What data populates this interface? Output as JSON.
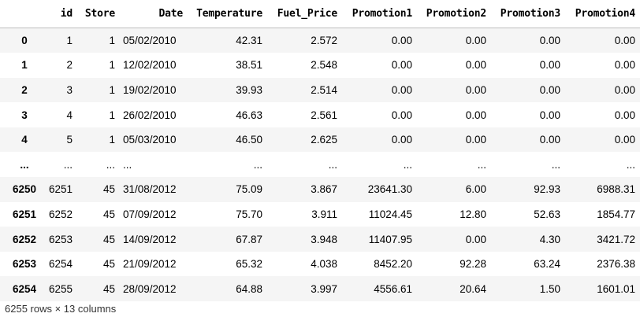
{
  "table": {
    "columns": [
      "",
      "id",
      "Store",
      "Date",
      "Temperature",
      "Fuel_Price",
      "Promotion1",
      "Promotion2",
      "Promotion3",
      "Promotion4"
    ],
    "rows": [
      [
        "0",
        "1",
        "1",
        "05/02/2010",
        "42.31",
        "2.572",
        "0.00",
        "0.00",
        "0.00",
        "0.00"
      ],
      [
        "1",
        "2",
        "1",
        "12/02/2010",
        "38.51",
        "2.548",
        "0.00",
        "0.00",
        "0.00",
        "0.00"
      ],
      [
        "2",
        "3",
        "1",
        "19/02/2010",
        "39.93",
        "2.514",
        "0.00",
        "0.00",
        "0.00",
        "0.00"
      ],
      [
        "3",
        "4",
        "1",
        "26/02/2010",
        "46.63",
        "2.561",
        "0.00",
        "0.00",
        "0.00",
        "0.00"
      ],
      [
        "4",
        "5",
        "1",
        "05/03/2010",
        "46.50",
        "2.625",
        "0.00",
        "0.00",
        "0.00",
        "0.00"
      ],
      [
        "...",
        "...",
        "...",
        "...",
        "...",
        "...",
        "...",
        "...",
        "...",
        "..."
      ],
      [
        "6250",
        "6251",
        "45",
        "31/08/2012",
        "75.09",
        "3.867",
        "23641.30",
        "6.00",
        "92.93",
        "6988.31"
      ],
      [
        "6251",
        "6252",
        "45",
        "07/09/2012",
        "75.70",
        "3.911",
        "11024.45",
        "12.80",
        "52.63",
        "1854.77"
      ],
      [
        "6252",
        "6253",
        "45",
        "14/09/2012",
        "67.87",
        "3.948",
        "11407.95",
        "0.00",
        "4.30",
        "3421.72"
      ],
      [
        "6253",
        "6254",
        "45",
        "21/09/2012",
        "65.32",
        "4.038",
        "8452.20",
        "92.28",
        "63.24",
        "2376.38"
      ],
      [
        "6254",
        "6255",
        "45",
        "28/09/2012",
        "64.88",
        "3.997",
        "4556.61",
        "20.64",
        "1.50",
        "1601.01"
      ]
    ]
  },
  "footer": {
    "shape": "6255 rows × 13 columns"
  }
}
